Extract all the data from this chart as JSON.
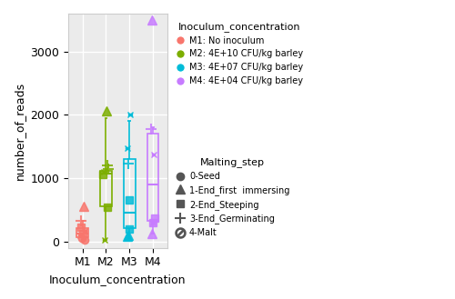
{
  "groups": [
    "M1",
    "M2",
    "M3",
    "M4"
  ],
  "colors": {
    "M1": "#F8766D",
    "M2": "#7CAE00",
    "M3": "#00BCD8",
    "M4": "#C77CFF"
  },
  "box_data": {
    "M1": {
      "q1": 70,
      "median": 120,
      "q3": 210,
      "whisker_low": 20,
      "whisker_high": 320
    },
    "M2": {
      "q1": 560,
      "median": 1070,
      "q3": 1120,
      "whisker_low": 20,
      "whisker_high": 1950
    },
    "M3": {
      "q1": 210,
      "median": 460,
      "q3": 1300,
      "whisker_low": 60,
      "whisker_high": 1900
    },
    "M4": {
      "q1": 330,
      "median": 900,
      "q3": 1700,
      "whisker_low": 120,
      "whisker_high": 1800
    }
  },
  "points": {
    "M1": [
      {
        "y": 50,
        "marker": "o",
        "label": "0-Seed"
      },
      {
        "y": 30,
        "marker": "o",
        "label": "0-Seed"
      },
      {
        "y": 560,
        "marker": "^",
        "label": "1-End_first_immersing"
      },
      {
        "y": 130,
        "marker": "s",
        "label": "2-End_Steeping"
      },
      {
        "y": 230,
        "marker": "s",
        "label": "2-End_Steeping"
      },
      {
        "y": 330,
        "marker": "+",
        "label": "3-End_Germinating"
      },
      {
        "y": 100,
        "marker": "x_box",
        "label": "4-Malt"
      },
      {
        "y": 170,
        "marker": "x_box",
        "label": "4-Malt"
      }
    ],
    "M2": [
      {
        "y": 2060,
        "marker": "^",
        "label": "1-End_first_immersing"
      },
      {
        "y": 540,
        "marker": "s",
        "label": "2-End_Steeping"
      },
      {
        "y": 1060,
        "marker": "s",
        "label": "2-End_Steeping"
      },
      {
        "y": 1140,
        "marker": "+",
        "label": "3-End_Germinating"
      },
      {
        "y": 1200,
        "marker": "+",
        "label": "3-End_Germinating"
      },
      {
        "y": 20,
        "marker": "x_box",
        "label": "4-Malt"
      },
      {
        "y": 1100,
        "marker": "x_box",
        "label": "4-Malt"
      }
    ],
    "M3": [
      {
        "y": 80,
        "marker": "^",
        "label": "1-End_first_immersing"
      },
      {
        "y": 100,
        "marker": "^",
        "label": "1-End_first_immersing"
      },
      {
        "y": 200,
        "marker": "s",
        "label": "2-End_Steeping"
      },
      {
        "y": 660,
        "marker": "s",
        "label": "2-End_Steeping"
      },
      {
        "y": 1230,
        "marker": "+",
        "label": "3-End_Germinating"
      },
      {
        "y": 2000,
        "marker": "x_box",
        "label": "4-Malt"
      },
      {
        "y": 1480,
        "marker": "x_box",
        "label": "4-Malt"
      }
    ],
    "M4": [
      {
        "y": 3500,
        "marker": "^",
        "label": "1-End_first_immersing"
      },
      {
        "y": 130,
        "marker": "^",
        "label": "1-End_first_immersing"
      },
      {
        "y": 300,
        "marker": "s",
        "label": "2-End_Steeping"
      },
      {
        "y": 370,
        "marker": "s",
        "label": "2-End_Steeping"
      },
      {
        "y": 1770,
        "marker": "+",
        "label": "3-End_Germinating"
      },
      {
        "y": 300,
        "marker": "x_box",
        "label": "4-Malt"
      },
      {
        "y": 1380,
        "marker": "x_box",
        "label": "4-Malt"
      }
    ]
  },
  "ylabel": "number_of_reads",
  "xlabel": "Inoculum_concentration",
  "ylim": [
    -100,
    3600
  ],
  "yticks": [
    0,
    1000,
    2000,
    3000
  ],
  "bg_color": "#EBEBEB",
  "grid_color": "white",
  "legend_inoculum": {
    "title": "Inoculum_concentration",
    "items": [
      {
        "label": "M1: No inoculum",
        "color": "#F8766D"
      },
      {
        "label": "M2: 4E+10 CFU/kg barley",
        "color": "#7CAE00"
      },
      {
        "label": "M3: 4E+07 CFU/kg barley",
        "color": "#00BCD8"
      },
      {
        "label": "M4: 4E+04 CFU/kg barley",
        "color": "#C77CFF"
      }
    ]
  },
  "legend_malting": {
    "title": "Malting_step",
    "items": [
      {
        "label": "0-Seed",
        "marker": "o"
      },
      {
        "label": "1-End_first  immersing",
        "marker": "^"
      },
      {
        "label": "2-End_Steeping",
        "marker": "s"
      },
      {
        "label": "3-End_Germinating",
        "marker": "+"
      },
      {
        "label": "4-Malt",
        "marker": "x_box"
      }
    ]
  }
}
